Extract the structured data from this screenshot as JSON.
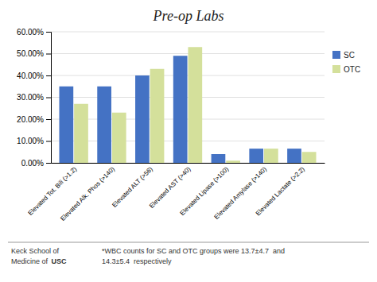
{
  "chart_data": {
    "type": "bar",
    "title": "Pre-op Labs",
    "categories": [
      "Elevated Tot. Bili (>1.2)",
      "Elevated Alk. Phos (>140)",
      "Elevated ALT (>56)",
      "Elevated AST (>40)",
      "Elevated Lipase (>100)",
      "Elevated Amylase (>140)",
      "Elevated Lactate (>2.2)"
    ],
    "series": [
      {
        "name": "SC",
        "color": "#4472C4",
        "values": [
          0.35,
          0.35,
          0.4,
          0.49,
          0.04,
          0.065,
          0.065
        ]
      },
      {
        "name": "OTC",
        "color": "#D4E09B",
        "values": [
          0.27,
          0.23,
          0.43,
          0.53,
          0.01,
          0.065,
          0.05
        ]
      }
    ],
    "ylim": [
      0,
      0.6
    ],
    "yticks": [
      {
        "value": 0,
        "label": "0.00%"
      },
      {
        "value": 0.1,
        "label": "10.00%"
      },
      {
        "value": 0.2,
        "label": "20.00%"
      },
      {
        "value": 0.3,
        "label": "30.00%"
      },
      {
        "value": 0.4,
        "label": "40.00%"
      },
      {
        "value": 0.5,
        "label": "50.00%"
      },
      {
        "value": 0.6,
        "label": "60.00%"
      }
    ],
    "grid": true,
    "legend": "right",
    "annotations": [
      "Keck School of",
      "Medicine of ",
      "USC",
      "*WBC counts for SC and OTC groups were 13.7±4.7  and",
      "14.3±5.4  respectively"
    ]
  }
}
